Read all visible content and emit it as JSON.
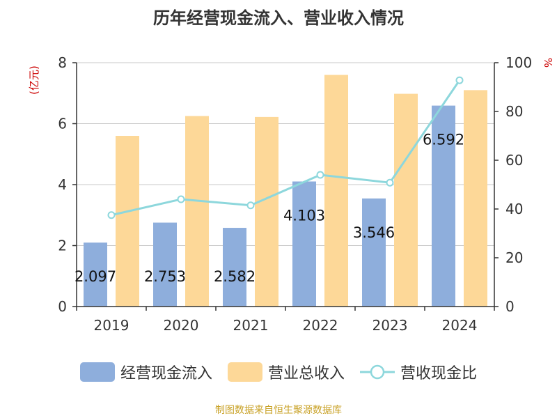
{
  "title": "历年经营现金流入、营业收入情况",
  "source": "制图数据来自恒生聚源数据库",
  "colors": {
    "cash_inflow": "#8eaedc",
    "revenue": "#fdd898",
    "ratio": "#8dd7dc",
    "axis_unit_left": "#cc0000",
    "axis_unit_right": "#cc0000",
    "grid": "#c8c8c8"
  },
  "chart_data": {
    "type": "bar",
    "categories": [
      "2019",
      "2020",
      "2021",
      "2022",
      "2023",
      "2024"
    ],
    "left_axis": {
      "unit": "(亿元)",
      "ylim": [
        0,
        8
      ],
      "ticks": [
        "0",
        "2",
        "4",
        "6",
        "8"
      ]
    },
    "right_axis": {
      "unit": "%",
      "ylim": [
        0,
        100
      ],
      "ticks": [
        "0",
        "20",
        "40",
        "60",
        "80",
        "100"
      ]
    },
    "series": [
      {
        "name": "经营现金流入",
        "kind": "bar",
        "axis": "left",
        "values": [
          2.097,
          2.753,
          2.582,
          4.103,
          3.546,
          6.592
        ],
        "labels": [
          "2.097",
          "2.753",
          "2.582",
          "4.103",
          "3.546",
          "6.592"
        ]
      },
      {
        "name": "营业总收入",
        "kind": "bar",
        "axis": "left",
        "values": [
          5.6,
          6.25,
          6.22,
          7.6,
          6.98,
          7.1
        ]
      },
      {
        "name": "营收现金比",
        "kind": "line",
        "axis": "right",
        "values": [
          37.5,
          44.0,
          41.5,
          54.0,
          50.8,
          92.8
        ]
      }
    ],
    "grid": true,
    "legend": "bottom"
  }
}
